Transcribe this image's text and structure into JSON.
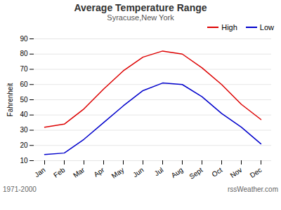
{
  "chart_data": {
    "type": "line",
    "title": "Average Temperature Range",
    "subtitle": "Syracuse,New York",
    "ylabel": "Fahrenheit",
    "categories": [
      "Jan",
      "Feb",
      "Mar",
      "Apr",
      "May",
      "Jun",
      "Jul",
      "Aug",
      "Sept",
      "Oct",
      "Nov",
      "Dec"
    ],
    "series": [
      {
        "name": "High",
        "color": "#dd0000",
        "values": [
          32,
          34,
          44,
          57,
          69,
          78,
          82,
          80,
          71,
          60,
          47,
          37
        ]
      },
      {
        "name": "Low",
        "color": "#0000cc",
        "values": [
          14,
          15,
          24,
          35,
          46,
          56,
          61,
          60,
          52,
          41,
          32,
          21
        ]
      }
    ],
    "ylim": [
      10,
      90
    ],
    "yticks": [
      10,
      20,
      30,
      40,
      50,
      60,
      70,
      80,
      90
    ],
    "grid": true,
    "legend": "upper right",
    "annotations": [
      "1971-2000",
      "rssWeather.com"
    ]
  }
}
